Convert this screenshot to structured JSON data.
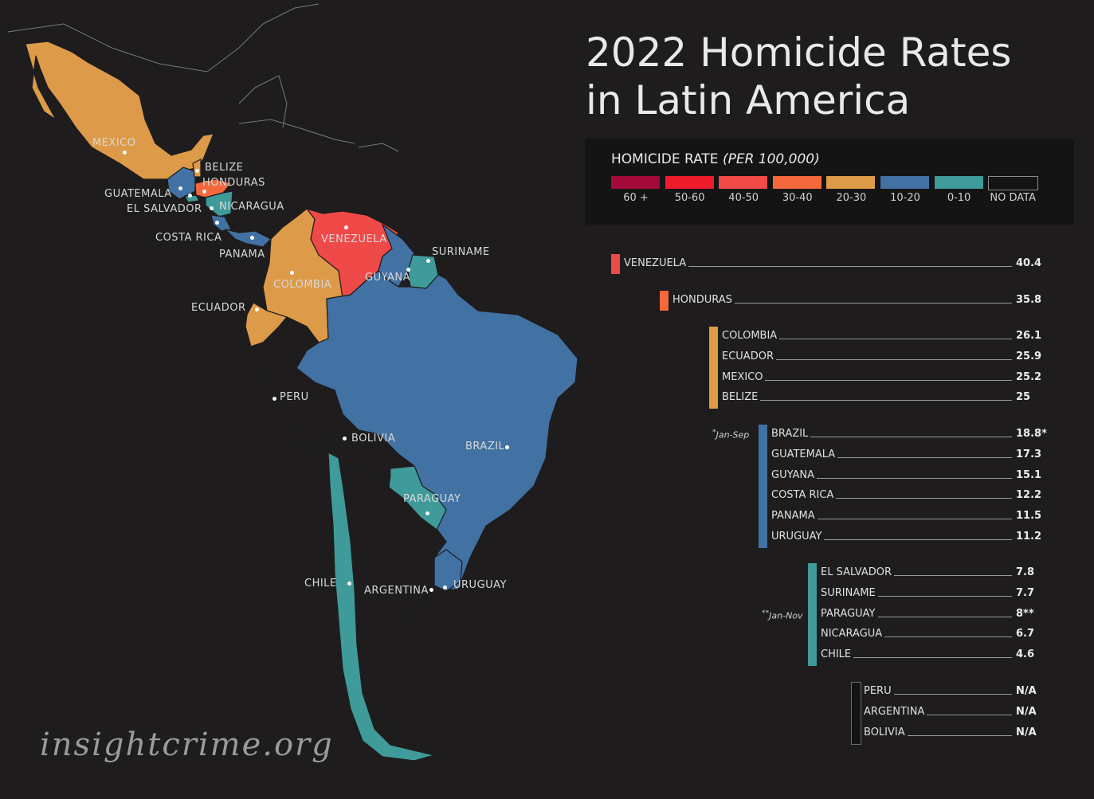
{
  "title": {
    "line1": "2022 Homicide Rates",
    "line2": "in Latin America"
  },
  "legend": {
    "title": "HOMICIDE RATE",
    "subtitle": "(PER 100,000)",
    "items": [
      {
        "label": "60 +",
        "color": "#a30a3a"
      },
      {
        "label": "50-60",
        "color": "#ee1c2b"
      },
      {
        "label": "40-50",
        "color": "#ef4a48"
      },
      {
        "label": "30-40",
        "color": "#f4683c"
      },
      {
        "label": "20-30",
        "color": "#dd9a48"
      },
      {
        "label": "10-20",
        "color": "#4271a3"
      },
      {
        "label": "0-10",
        "color": "#3f9a9a"
      },
      {
        "label": "NO DATA",
        "color": "#151414"
      }
    ]
  },
  "groups": [
    {
      "color": "#ef4a48",
      "rows": [
        {
          "name": "VENEZUELA",
          "value": "40.4"
        }
      ]
    },
    {
      "color": "#f4683c",
      "rows": [
        {
          "name": "HONDURAS",
          "value": "35.8"
        }
      ]
    },
    {
      "color": "#dd9a48",
      "rows": [
        {
          "name": "COLOMBIA",
          "value": "26.1"
        },
        {
          "name": "ECUADOR",
          "value": "25.9"
        },
        {
          "name": "MEXICO",
          "value": "25.2"
        },
        {
          "name": "BELIZE",
          "value": "25"
        }
      ]
    },
    {
      "color": "#4271a3",
      "note": "Jan-Sep",
      "note_mark": "*",
      "rows": [
        {
          "name": "BRAZIL",
          "value": "18.8*"
        },
        {
          "name": "GUATEMALA",
          "value": "17.3"
        },
        {
          "name": "GUYANA",
          "value": "15.1"
        },
        {
          "name": "COSTA RICA",
          "value": "12.2"
        },
        {
          "name": "PANAMA",
          "value": "11.5"
        },
        {
          "name": "URUGUAY",
          "value": "11.2"
        }
      ]
    },
    {
      "color": "#3f9a9a",
      "note": "Jan-Nov",
      "note_mark": "**",
      "rows": [
        {
          "name": "EL SALVADOR",
          "value": "7.8"
        },
        {
          "name": "SURINAME",
          "value": "7.7"
        },
        {
          "name": "PARAGUAY",
          "value": "8**"
        },
        {
          "name": "NICARAGUA",
          "value": "6.7"
        },
        {
          "name": "CHILE",
          "value": "4.6"
        }
      ]
    },
    {
      "color": "#151414",
      "rows": [
        {
          "name": "PERU",
          "value": "N/A"
        },
        {
          "name": "ARGENTINA",
          "value": "N/A"
        },
        {
          "name": "BOLIVIA",
          "value": "N/A"
        }
      ]
    }
  ],
  "map_labels": {
    "mexico": "MEXICO",
    "belize": "BELIZE",
    "honduras": "HONDURAS",
    "guatemala": "GUATEMALA",
    "el_salvador": "EL SALVADOR",
    "nicaragua": "NICARAGUA",
    "costa_rica": "COSTA RICA",
    "panama": "PANAMA",
    "venezuela": "VENEZUELA",
    "suriname": "SURINAME",
    "guyana": "GUYANA",
    "colombia": "COLOMBIA",
    "ecuador": "ECUADOR",
    "peru": "PERU",
    "bolivia": "BOLIVIA",
    "brazil": "BRAZIL",
    "paraguay": "PARAGUAY",
    "chile": "CHILE",
    "argentina": "ARGENTINA",
    "uruguay": "URUGUAY"
  },
  "watermark": "insightcrime.org"
}
